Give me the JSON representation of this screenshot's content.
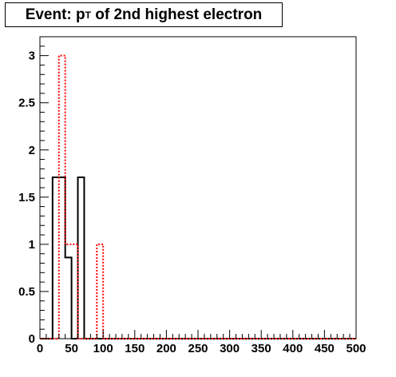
{
  "chart_data": {
    "type": "bar",
    "title": {
      "prefix": "Event: p",
      "subscript": "T",
      "suffix": " of 2nd highest electron"
    },
    "xlim": [
      0,
      500
    ],
    "ylim": [
      0,
      3.2
    ],
    "bin_width": 10,
    "x_ticks": [
      0,
      50,
      100,
      150,
      200,
      250,
      300,
      350,
      400,
      450,
      500
    ],
    "x_tick_labels": [
      "0",
      "50",
      "100",
      "150",
      "200",
      "250",
      "300",
      "350",
      "400",
      "450",
      "500"
    ],
    "y_ticks": [
      0,
      0.5,
      1,
      1.5,
      2,
      2.5,
      3
    ],
    "y_tick_labels": [
      "0",
      "0.5",
      "1",
      "1.5",
      "2",
      "2.5",
      "3"
    ],
    "grid": false,
    "series": [
      {
        "style": "solid",
        "color": "#000000",
        "bins": [
          {
            "x0": 20,
            "x1": 30,
            "y": 1.71
          },
          {
            "x0": 30,
            "x1": 40,
            "y": 1.71
          },
          {
            "x0": 40,
            "x1": 50,
            "y": 0.86
          },
          {
            "x0": 50,
            "x1": 60,
            "y": 0
          },
          {
            "x0": 60,
            "x1": 70,
            "y": 1.71
          }
        ]
      },
      {
        "style": "dotted",
        "color": "#ff0000",
        "bins": [
          {
            "x0": 30,
            "x1": 40,
            "y": 3
          },
          {
            "x0": 40,
            "x1": 50,
            "y": 1
          },
          {
            "x0": 50,
            "x1": 60,
            "y": 1
          },
          {
            "x0": 90,
            "x1": 100,
            "y": 1
          }
        ]
      }
    ]
  }
}
